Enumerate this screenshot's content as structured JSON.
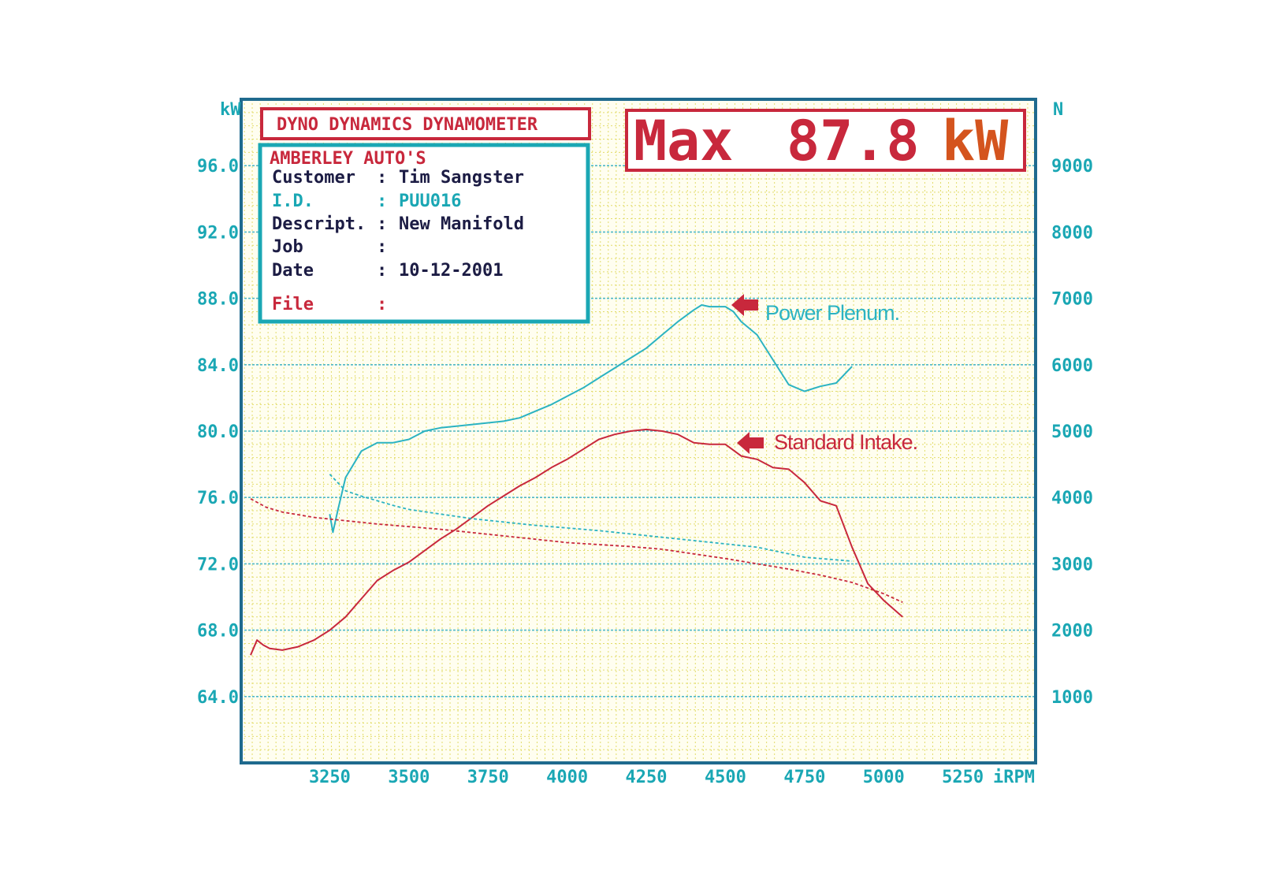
{
  "header": {
    "title": "DYNO DYNAMICS DYNAMOMETER",
    "max_label": "Max",
    "max_value": "87.8",
    "max_unit": "kW"
  },
  "info": {
    "shop": "AMBERLEY AUTO'S",
    "rows": [
      {
        "label": "Customer",
        "sep": ":",
        "value": "Tim Sangster"
      },
      {
        "label": "I.D.",
        "sep": ":",
        "value": "PUU016"
      },
      {
        "label": "Descript.",
        "sep": ":",
        "value": "New Manifold"
      },
      {
        "label": "Job",
        "sep": ":",
        "value": ""
      },
      {
        "label": "Date",
        "sep": ":",
        "value": "10-12-2001"
      },
      {
        "label": "File",
        "sep": ":",
        "value": ""
      }
    ]
  },
  "colors": {
    "power_plenum": "#2bb3c2",
    "standard_intake": "#c8283c",
    "axis_text": "#1aa7b4",
    "frame": "#1f6a8e",
    "grid_minor": "#e2dc6a",
    "grid_major": "#4fb8c6"
  },
  "chart_data": {
    "type": "line",
    "xlabel": "iRPM",
    "ylabel_left": "kW",
    "ylabel_right": "N",
    "x_ticks": [
      "3250",
      "3500",
      "3750",
      "4000",
      "4250",
      "4500",
      "4750",
      "5000",
      "5250"
    ],
    "y_left_ticks": [
      "96.0",
      "92.0",
      "88.0",
      "84.0",
      "80.0",
      "76.0",
      "72.0",
      "68.0",
      "64.0"
    ],
    "y_right_ticks": [
      "9000",
      "8000",
      "7000",
      "6000",
      "5000",
      "4000",
      "3000",
      "2000",
      "1000"
    ],
    "xlim": [
      2980,
      5480
    ],
    "ylim_left": [
      60.0,
      100.0
    ],
    "ylim_right": [
      0,
      10000
    ],
    "grid": true,
    "series": [
      {
        "name": "Power Plenum.",
        "kind": "power",
        "axis": "left",
        "x": [
          3250,
          3260,
          3275,
          3300,
          3350,
          3400,
          3450,
          3500,
          3550,
          3600,
          3650,
          3700,
          3750,
          3800,
          3850,
          3900,
          3950,
          4000,
          4050,
          4100,
          4150,
          4200,
          4250,
          4300,
          4350,
          4400,
          4425,
          4450,
          4475,
          4500,
          4525,
          4550,
          4600,
          4650,
          4700,
          4750,
          4800,
          4850,
          4900
        ],
        "y": [
          75.0,
          73.9,
          75.2,
          77.2,
          78.8,
          79.3,
          79.3,
          79.5,
          80.0,
          80.2,
          80.3,
          80.4,
          80.5,
          80.6,
          80.8,
          81.2,
          81.6,
          82.1,
          82.6,
          83.2,
          83.8,
          84.4,
          85.0,
          85.8,
          86.6,
          87.3,
          87.6,
          87.5,
          87.5,
          87.5,
          87.2,
          86.6,
          85.8,
          84.3,
          82.8,
          82.4,
          82.7,
          82.9,
          83.9
        ]
      },
      {
        "name": "Standard Intake.",
        "kind": "power",
        "axis": "left",
        "x": [
          3000,
          3020,
          3040,
          3060,
          3100,
          3150,
          3200,
          3250,
          3300,
          3350,
          3400,
          3450,
          3500,
          3550,
          3600,
          3650,
          3700,
          3750,
          3800,
          3850,
          3900,
          3950,
          4000,
          4050,
          4100,
          4150,
          4200,
          4250,
          4300,
          4350,
          4400,
          4450,
          4500,
          4550,
          4600,
          4650,
          4700,
          4750,
          4800,
          4850,
          4900,
          4950,
          5000,
          5060
        ],
        "y": [
          66.5,
          67.4,
          67.1,
          66.9,
          66.8,
          67.0,
          67.4,
          68.0,
          68.8,
          69.9,
          71.0,
          71.6,
          72.1,
          72.8,
          73.5,
          74.1,
          74.8,
          75.5,
          76.1,
          76.7,
          77.2,
          77.8,
          78.3,
          78.9,
          79.5,
          79.8,
          80.0,
          80.1,
          80.0,
          79.8,
          79.3,
          79.2,
          79.2,
          78.5,
          78.3,
          77.8,
          77.7,
          76.9,
          75.8,
          75.5,
          73.0,
          70.8,
          69.8,
          68.8
        ]
      },
      {
        "name": "Power Plenum.",
        "kind": "tractive-effort",
        "axis": "right",
        "x": [
          3250,
          3300,
          3350,
          3400,
          3450,
          3500,
          3600,
          3700,
          3800,
          3900,
          4000,
          4100,
          4200,
          4300,
          4400,
          4500,
          4600,
          4700,
          4750,
          4800,
          4900
        ],
        "y": [
          4350,
          4100,
          4020,
          3950,
          3880,
          3820,
          3750,
          3680,
          3630,
          3580,
          3540,
          3500,
          3450,
          3400,
          3350,
          3300,
          3250,
          3150,
          3100,
          3080,
          3040
        ]
      },
      {
        "name": "Standard Intake.",
        "kind": "tractive-effort",
        "axis": "right",
        "x": [
          3000,
          3050,
          3100,
          3200,
          3300,
          3400,
          3500,
          3600,
          3700,
          3800,
          3900,
          4000,
          4100,
          4200,
          4300,
          4400,
          4500,
          4600,
          4700,
          4800,
          4900,
          5000,
          5060
        ],
        "y": [
          3980,
          3850,
          3780,
          3700,
          3650,
          3600,
          3560,
          3520,
          3470,
          3420,
          3370,
          3320,
          3290,
          3260,
          3220,
          3150,
          3080,
          3000,
          2920,
          2830,
          2720,
          2550,
          2420
        ]
      }
    ],
    "annotations": [
      {
        "text": "Power Plenum.",
        "series": "power_plenum"
      },
      {
        "text": "Standard Intake.",
        "series": "standard_intake"
      }
    ]
  }
}
